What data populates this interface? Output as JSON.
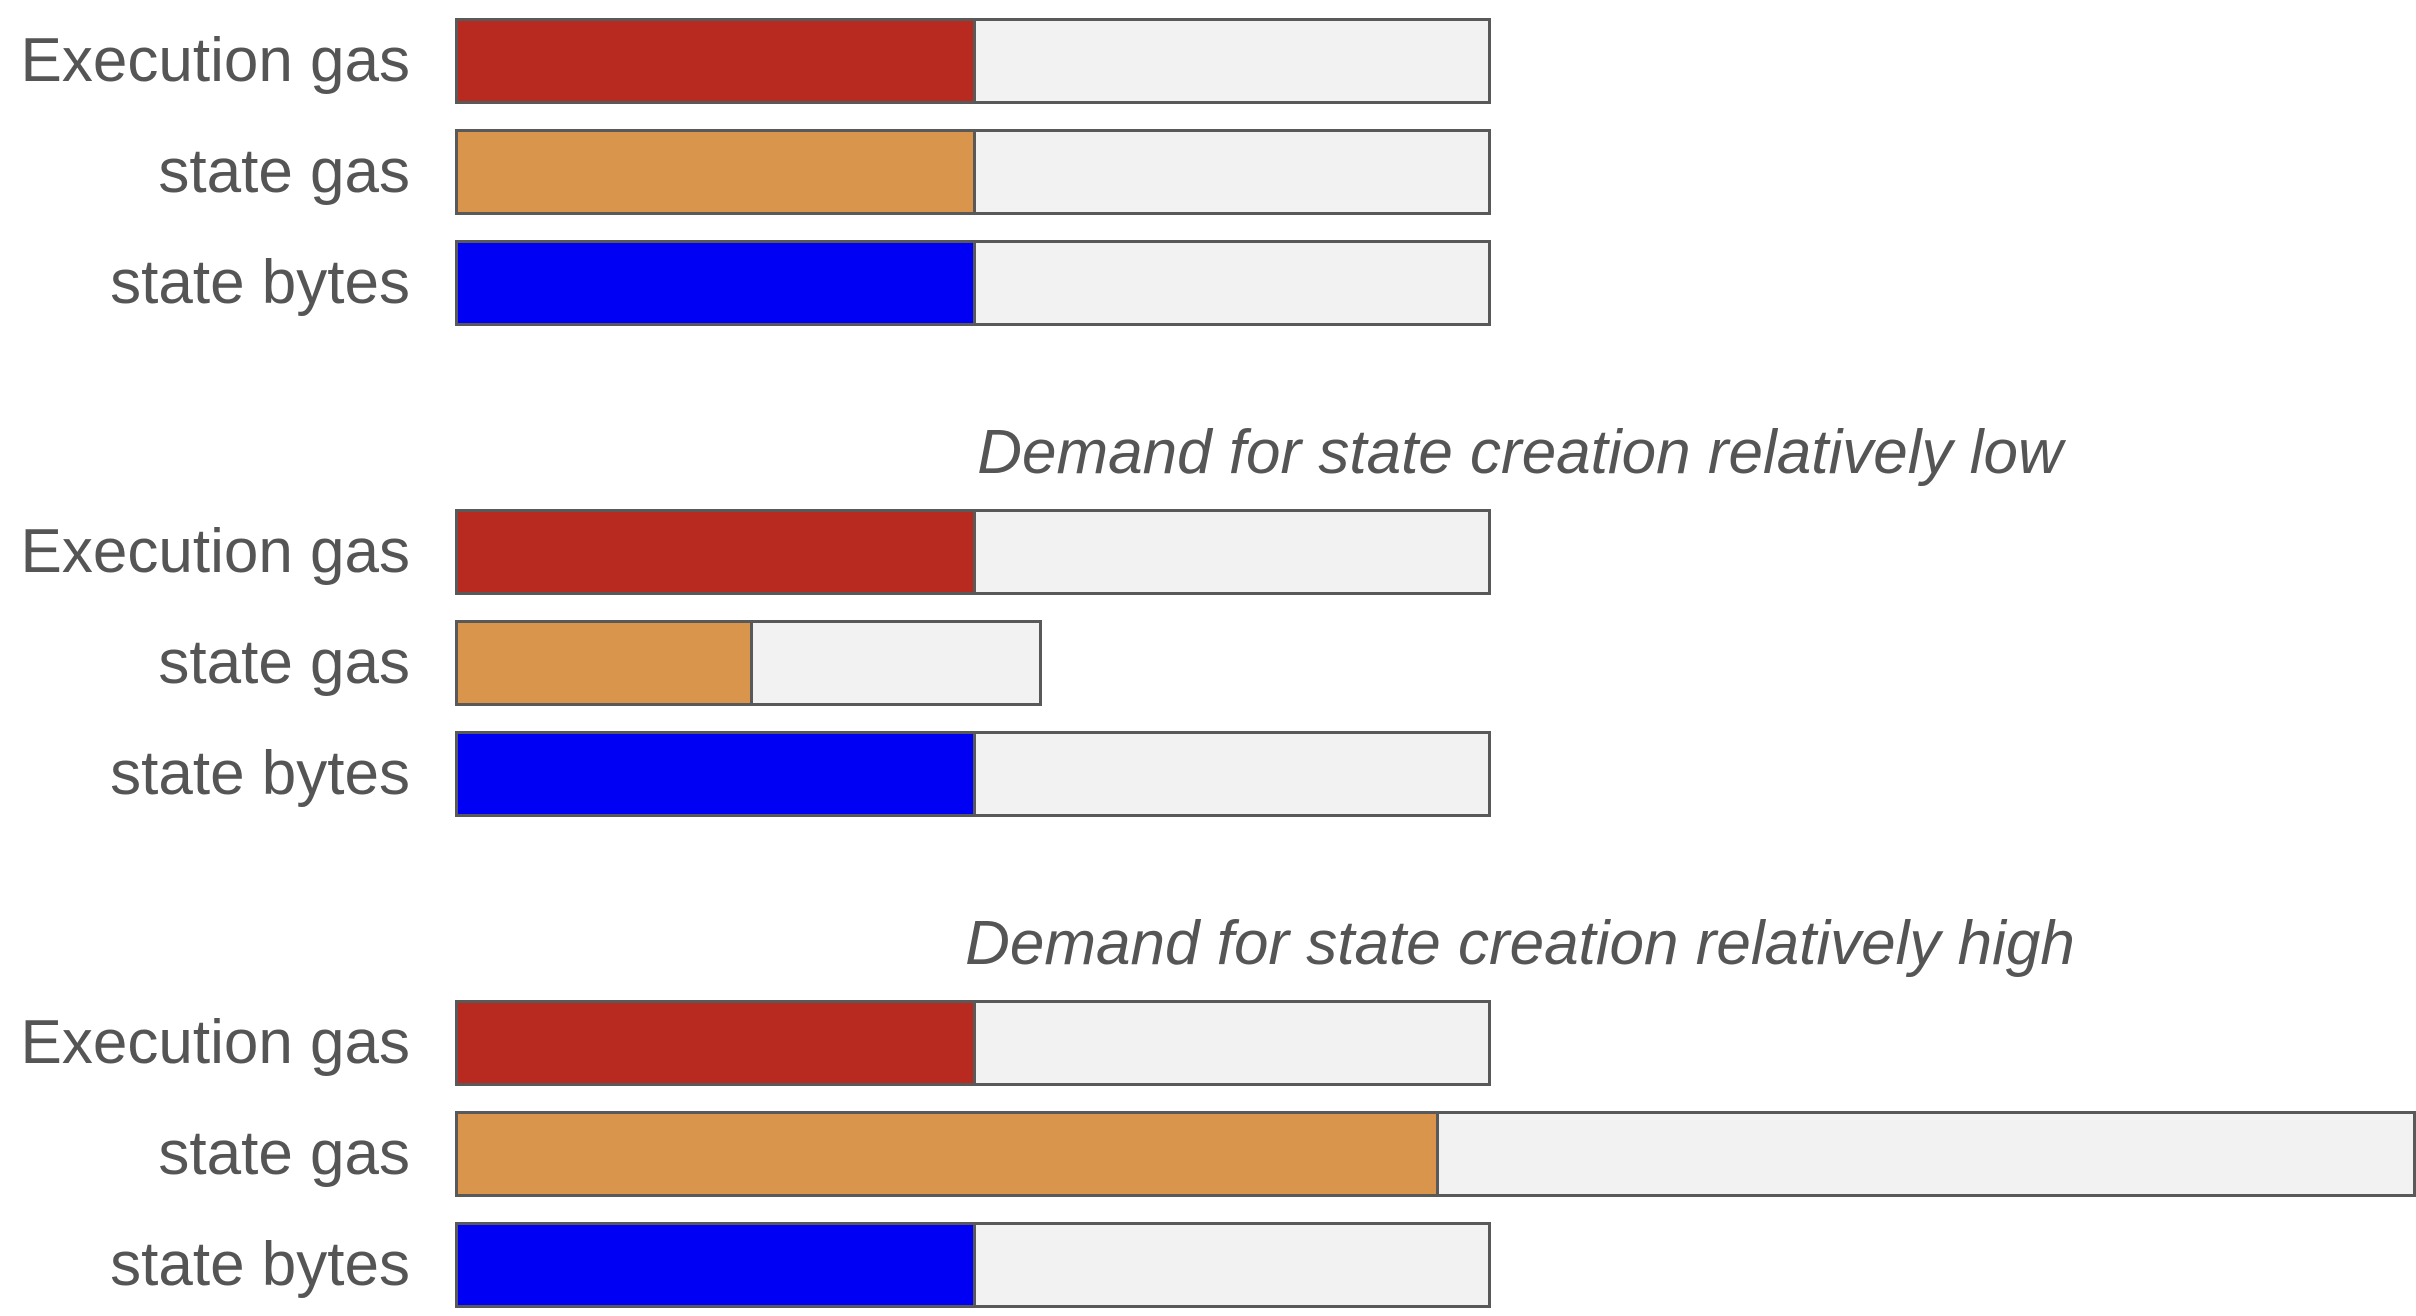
{
  "diagram": {
    "scenarios": [
      {
        "caption": "",
        "rows": [
          {
            "label": "Execution gas",
            "capacity": 1.0,
            "usage": 0.5,
            "color": "#b8291f"
          },
          {
            "label": "state gas",
            "capacity": 1.0,
            "usage": 0.5,
            "color": "#d9954b"
          },
          {
            "label": "state bytes",
            "capacity": 1.0,
            "usage": 0.5,
            "color": "#0000f5"
          }
        ]
      },
      {
        "caption": "Demand for state creation relatively low",
        "rows": [
          {
            "label": "Execution gas",
            "capacity": 1.0,
            "usage": 0.5,
            "color": "#b8291f"
          },
          {
            "label": "state gas",
            "capacity": 0.567,
            "usage": 0.285,
            "color": "#d9954b"
          },
          {
            "label": "state bytes",
            "capacity": 1.0,
            "usage": 0.5,
            "color": "#0000f5"
          }
        ]
      },
      {
        "caption": "Demand for state creation relatively high",
        "rows": [
          {
            "label": "Execution gas",
            "capacity": 1.0,
            "usage": 0.5,
            "color": "#b8291f"
          },
          {
            "label": "state gas",
            "capacity": 1.893,
            "usage": 0.947,
            "color": "#d9954b"
          },
          {
            "label": "state bytes",
            "capacity": 1.0,
            "usage": 0.5,
            "color": "#0000f5"
          }
        ]
      }
    ]
  }
}
